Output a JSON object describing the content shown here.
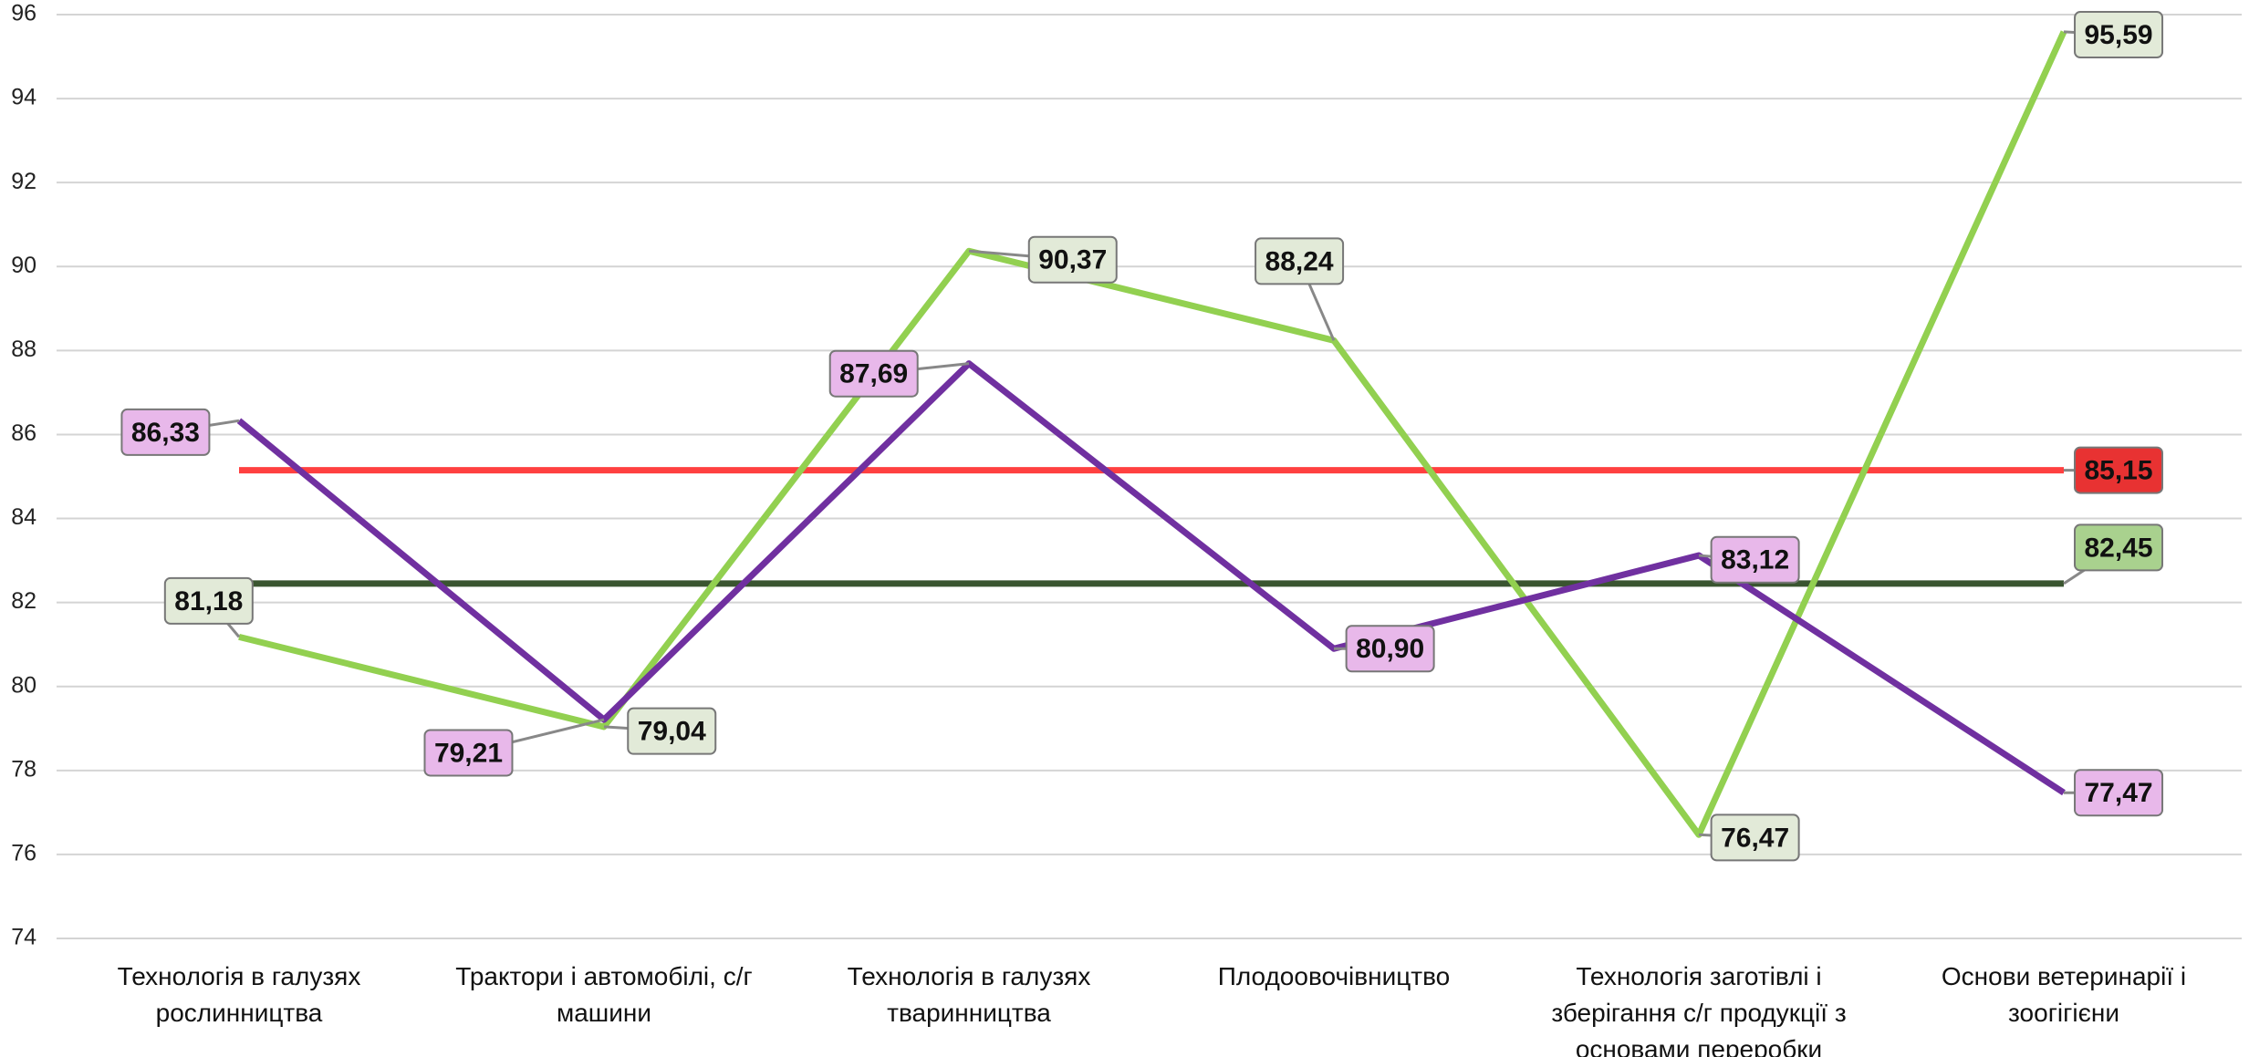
{
  "chart_data": {
    "type": "line",
    "categories": [
      "Технологія в галузях рослинництва",
      "Трактори і автомобілі, с/г машини",
      "Технологія в галузях тваринництва",
      "Плодоовочівництво",
      "Технологія заготівлі і зберігання с/г продукції з основами переробки",
      "Основи ветеринарії і зоогігієни"
    ],
    "series": [
      {
        "color": "#92d050",
        "label_fill": "#e2ead8",
        "values": [
          81.18,
          79.04,
          90.37,
          88.24,
          76.47,
          95.59
        ],
        "value_labels": [
          "81,18",
          "79,04",
          "90,37",
          "88,24",
          "76,47",
          "95,59"
        ]
      },
      {
        "color": "#7030a0",
        "label_fill": "#e8b8ea",
        "values": [
          86.33,
          79.21,
          87.69,
          80.9,
          83.12,
          77.47
        ],
        "value_labels": [
          "86,33",
          "79,21",
          "87,69",
          "80,90",
          "83,12",
          "77,47"
        ]
      }
    ],
    "reference_lines": [
      {
        "value": 85.15,
        "label": "85,15",
        "color": "#ff4040",
        "label_fill": "#e83232"
      },
      {
        "value": 82.45,
        "label": "82,45",
        "color": "#3a5530",
        "label_fill": "#a9d18e"
      }
    ],
    "ylim": [
      74,
      96
    ],
    "yticks": [
      74,
      76,
      78,
      80,
      82,
      84,
      86,
      88,
      90,
      92,
      94,
      96
    ],
    "grid": true
  }
}
